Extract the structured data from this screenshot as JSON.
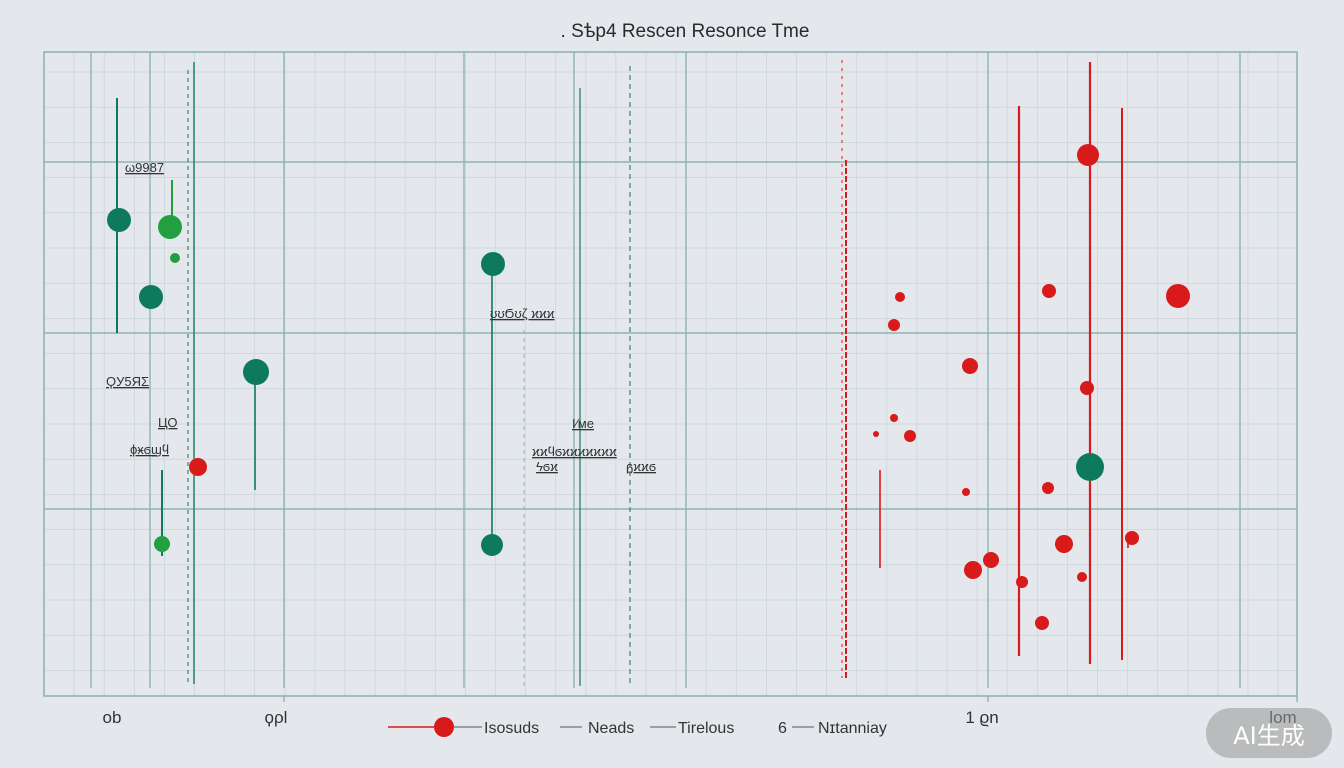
{
  "chart_data": {
    "type": "scatter",
    "title": ". Sѣp4 Rescen Resonce Tme",
    "xlabel": "",
    "ylabel": "",
    "x_ticks": [
      "ob",
      "ϙρl",
      "1 ϱn",
      "lom"
    ],
    "grid": true,
    "legend_position": "bottom-center",
    "colors": {
      "green": "#0e7a5c",
      "bright_green": "#22a040",
      "red": "#d81a1a",
      "grid": "#8fb3b8"
    },
    "annotations": [
      "ω9987",
      "ϘУ5ЯΣ",
      "ЦО",
      "ϕӿϭϣϥ",
      "ʊʊϬʊζ ϰϰϰ",
      "Ι⁄ᴍе",
      "ϰϰϥϭϰϰϰϰϰϰϰ",
      "ᵷϰϰϭ",
      "ϟϭϰ"
    ],
    "legend": [
      "Ιsosuds",
      "Neads",
      "Tirelous",
      "6",
      "Nɪtanniay"
    ],
    "series": [
      {
        "name": "green",
        "color": "#0e7a5c",
        "points": [
          [
            119,
            220
          ],
          [
            170,
            227
          ],
          [
            151,
            297
          ],
          [
            493,
            264
          ],
          [
            256,
            372
          ],
          [
            492,
            545
          ],
          [
            1090,
            467
          ],
          [
            162,
            544
          ],
          [
            175,
            258
          ]
        ]
      },
      {
        "name": "red",
        "color": "#d81a1a",
        "points": [
          [
            1088,
            155
          ],
          [
            1178,
            296
          ],
          [
            1049,
            291
          ],
          [
            900,
            297
          ],
          [
            894,
            325
          ],
          [
            970,
            366
          ],
          [
            1087,
            388
          ],
          [
            894,
            418
          ],
          [
            910,
            436
          ],
          [
            876,
            434
          ],
          [
            1048,
            488
          ],
          [
            966,
            492
          ],
          [
            1064,
            544
          ],
          [
            1132,
            538
          ],
          [
            991,
            560
          ],
          [
            973,
            570
          ],
          [
            1022,
            582
          ],
          [
            1082,
            577
          ],
          [
            1042,
            623
          ],
          [
            198,
            467
          ]
        ]
      }
    ],
    "watermark": "AI生成"
  }
}
